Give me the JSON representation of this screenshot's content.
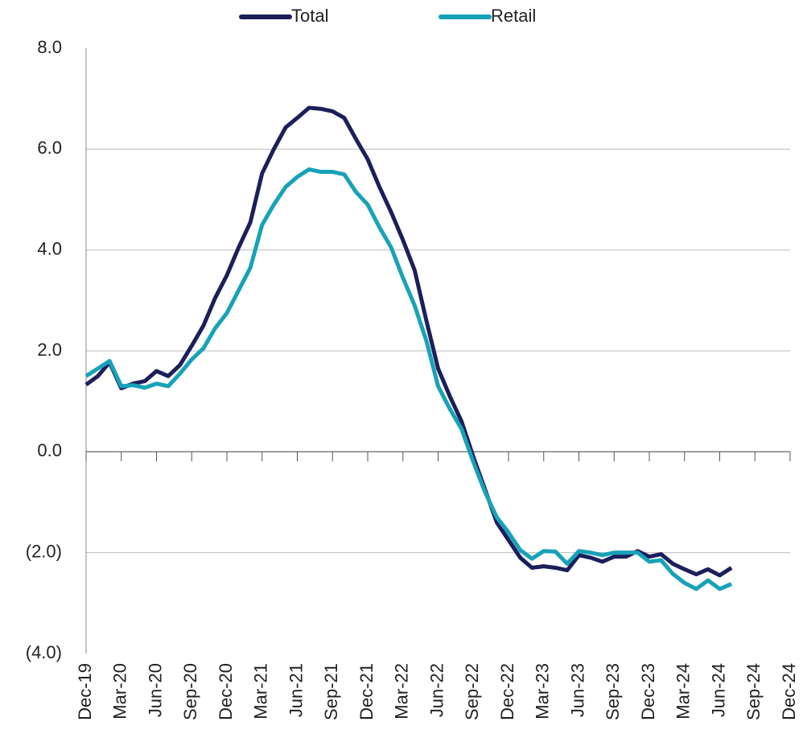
{
  "chart_data": {
    "type": "line",
    "legend": "top",
    "categories": [
      "Dec-19",
      null,
      null,
      "Mar-20",
      null,
      null,
      "Jun-20",
      null,
      null,
      "Sep-20",
      null,
      null,
      "Dec-20",
      null,
      null,
      "Mar-21",
      null,
      null,
      "Jun-21",
      null,
      null,
      "Sep-21",
      null,
      null,
      "Dec-21",
      null,
      null,
      "Mar-22",
      null,
      null,
      "Jun-22",
      null,
      null,
      "Sep-22",
      null,
      null,
      "Dec-22",
      null,
      null,
      "Mar-23",
      null,
      null,
      "Jun-23",
      null,
      null,
      "Sep-23",
      null,
      null,
      "Dec-23",
      null,
      null,
      "Mar-24",
      null,
      null,
      "Jun-24",
      null,
      null,
      "Sep-24",
      null,
      null,
      "Dec-24"
    ],
    "series": [
      {
        "name": "Total",
        "color": "#1c1f5a",
        "values": [
          1.33,
          1.5,
          1.77,
          1.26,
          1.35,
          1.4,
          1.6,
          1.5,
          1.72,
          2.1,
          2.5,
          3.05,
          3.5,
          4.05,
          4.55,
          5.52,
          6.0,
          6.43,
          6.62,
          6.82,
          6.8,
          6.75,
          6.62,
          6.2,
          5.8,
          5.25,
          4.75,
          4.2,
          3.6,
          2.6,
          1.65,
          1.1,
          0.6,
          -0.1,
          -0.75,
          -1.4,
          -1.75,
          -2.1,
          -2.3,
          -2.27,
          -2.3,
          -2.35,
          -2.05,
          -2.1,
          -2.18,
          -2.08,
          -2.08,
          -1.97,
          -2.08,
          -2.03,
          -2.22,
          -2.33,
          -2.43,
          -2.33,
          -2.45,
          -2.3,
          null,
          null,
          null,
          null,
          null
        ]
      },
      {
        "name": "Retail",
        "color": "#17a2b8",
        "values": [
          1.5,
          1.65,
          1.8,
          1.3,
          1.32,
          1.27,
          1.35,
          1.3,
          1.55,
          1.83,
          2.05,
          2.45,
          2.75,
          3.2,
          3.65,
          4.5,
          4.9,
          5.25,
          5.45,
          5.6,
          5.55,
          5.55,
          5.5,
          5.15,
          4.9,
          4.45,
          4.05,
          3.45,
          2.9,
          2.2,
          1.3,
          0.85,
          0.45,
          -0.2,
          -0.8,
          -1.3,
          -1.6,
          -1.95,
          -2.12,
          -1.97,
          -1.98,
          -2.22,
          -1.97,
          -2.0,
          -2.05,
          -2.0,
          -2.0,
          -2.0,
          -2.18,
          -2.15,
          -2.42,
          -2.6,
          -2.72,
          -2.55,
          -2.72,
          -2.62,
          null,
          null,
          null,
          null,
          null
        ]
      }
    ],
    "ylim": [
      -4,
      8
    ],
    "yticks": [
      {
        "value": -4,
        "label": "(4.0)"
      },
      {
        "value": -2,
        "label": "(2.0)"
      },
      {
        "value": 0,
        "label": "0.0"
      },
      {
        "value": 2,
        "label": "2.0"
      },
      {
        "value": 4,
        "label": "4.0"
      },
      {
        "value": 6,
        "label": "6.0"
      },
      {
        "value": 8,
        "label": "8.0"
      }
    ],
    "grid": true
  }
}
